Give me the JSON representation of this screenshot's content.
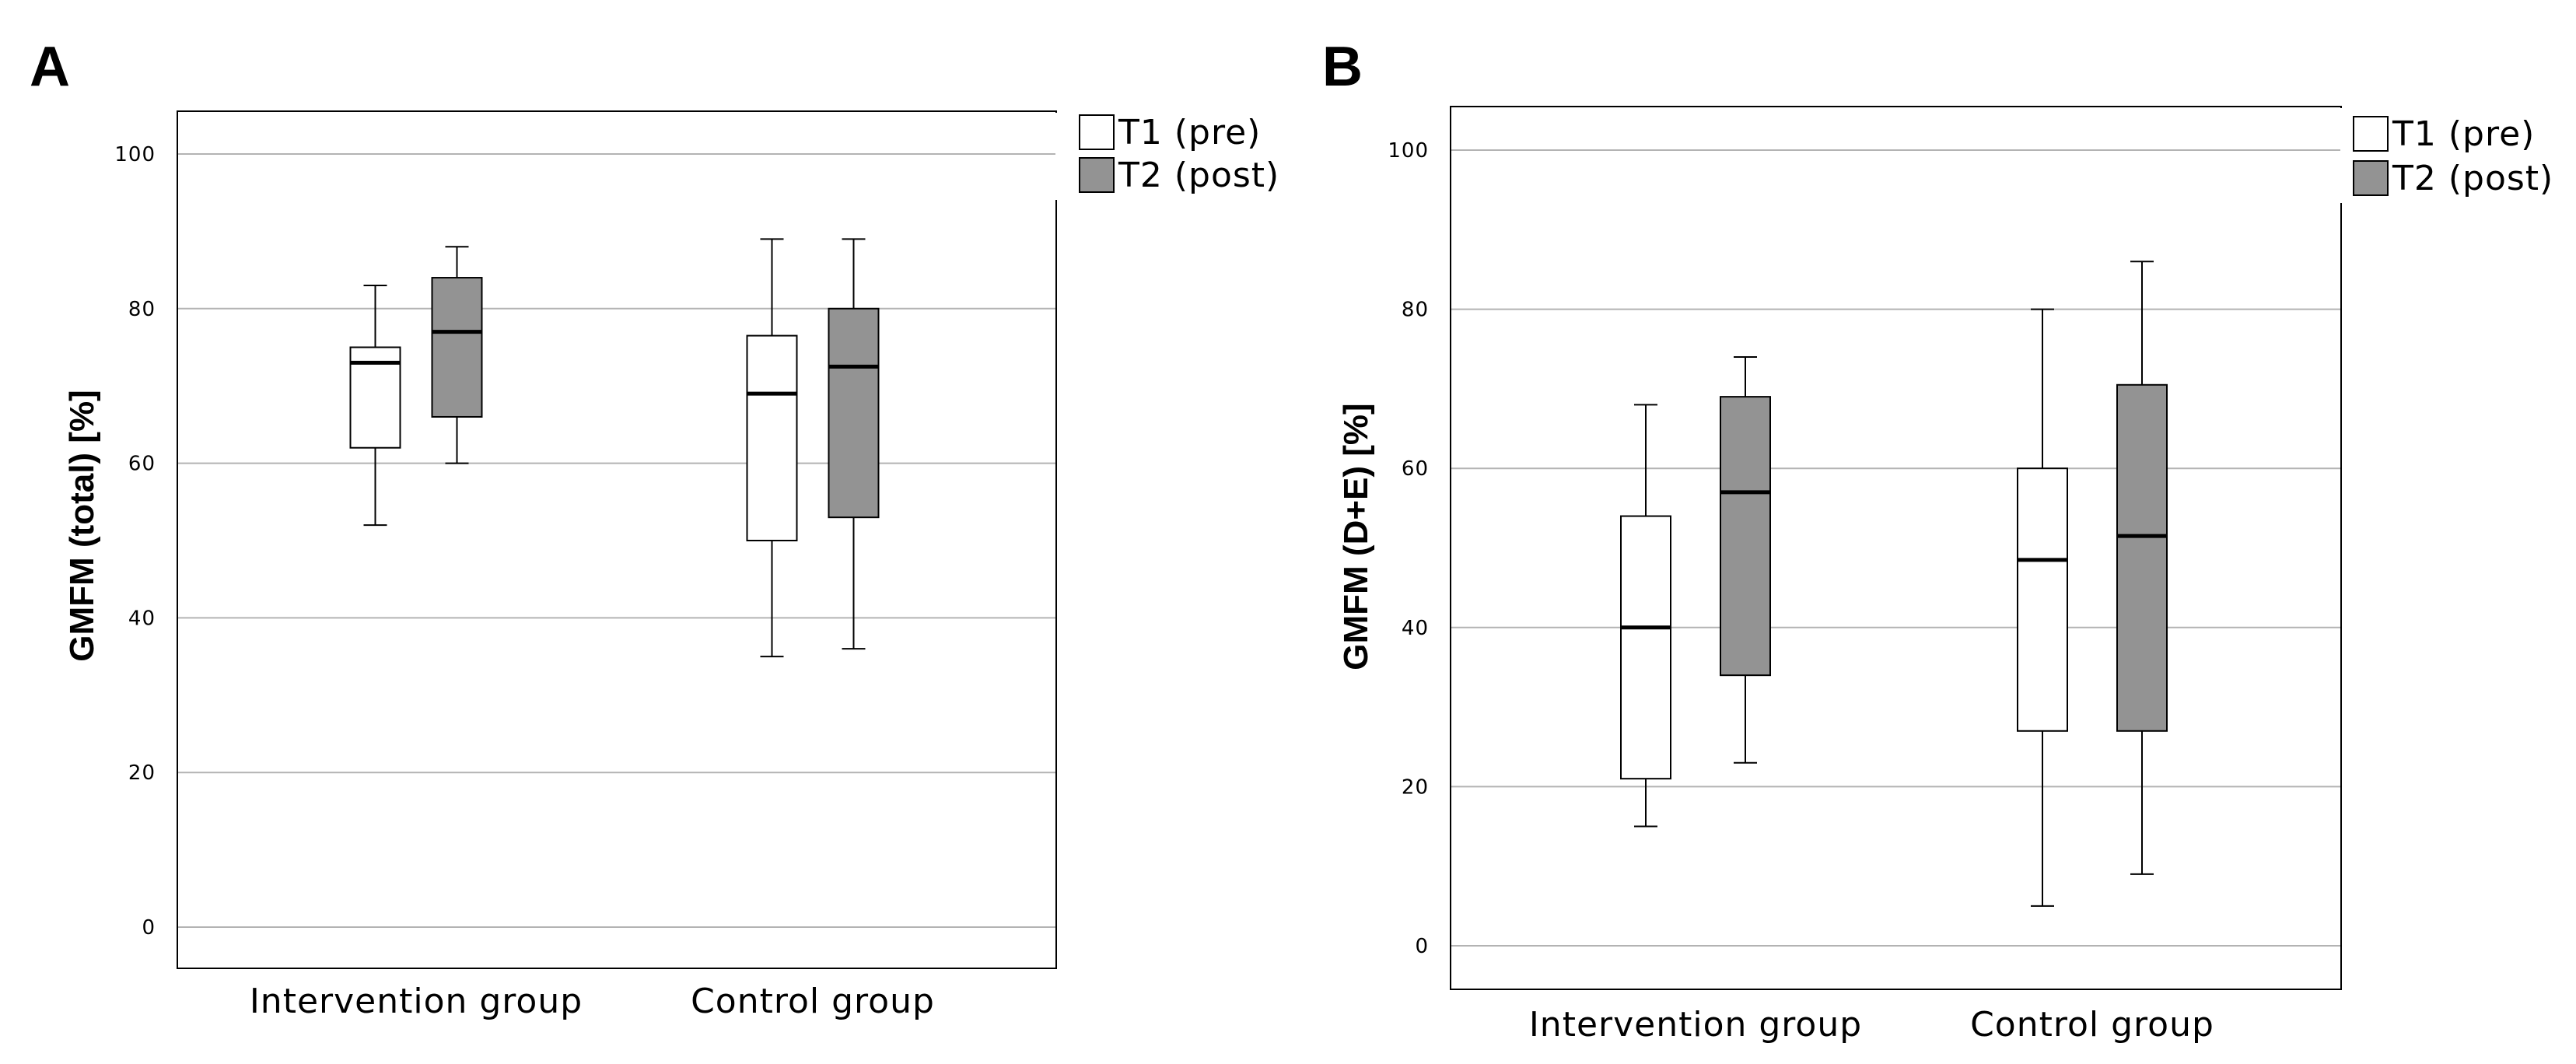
{
  "colors": {
    "t1": "#ffffff",
    "t2": "#939393",
    "grid": "#b3b3b3",
    "axis": "#000000"
  },
  "chart_data": [
    {
      "type": "box",
      "panel": "A",
      "ylabel": "GMFM (total) [%]",
      "xlabel": "",
      "ylim": [
        -5,
        105
      ],
      "yticks": [
        0,
        20,
        40,
        60,
        80,
        100
      ],
      "grid": true,
      "legend_position": "outside-top-right",
      "categories": [
        "Intervention group",
        "Control group"
      ],
      "series": [
        {
          "name": "T1 (pre)",
          "boxes": [
            {
              "whisker_low": 52,
              "q1": 62,
              "median": 73,
              "q3": 75,
              "whisker_high": 83
            },
            {
              "whisker_low": 35,
              "q1": 50,
              "median": 69,
              "q3": 76.5,
              "whisker_high": 89
            }
          ]
        },
        {
          "name": "T2 (post)",
          "boxes": [
            {
              "whisker_low": 60,
              "q1": 66,
              "median": 77,
              "q3": 84,
              "whisker_high": 88
            },
            {
              "whisker_low": 36,
              "q1": 53,
              "median": 72.5,
              "q3": 80,
              "whisker_high": 89
            }
          ]
        }
      ]
    },
    {
      "type": "box",
      "panel": "B",
      "ylabel": "GMFM (D+E) [%]",
      "xlabel": "",
      "ylim": [
        -5,
        106
      ],
      "yticks": [
        0,
        20,
        40,
        60,
        80,
        100
      ],
      "grid": true,
      "legend_position": "outside-top-right",
      "categories": [
        "Intervention group",
        "Control group"
      ],
      "series": [
        {
          "name": "T1 (pre)",
          "boxes": [
            {
              "whisker_low": 15,
              "q1": 21,
              "median": 40,
              "q3": 54,
              "whisker_high": 68
            },
            {
              "whisker_low": 5,
              "q1": 27,
              "median": 48.5,
              "q3": 60,
              "whisker_high": 80
            }
          ]
        },
        {
          "name": "T2 (post)",
          "boxes": [
            {
              "whisker_low": 23,
              "q1": 34,
              "median": 57,
              "q3": 69,
              "whisker_high": 74
            },
            {
              "whisker_low": 9,
              "q1": 27,
              "median": 51.5,
              "q3": 70.5,
              "whisker_high": 86
            }
          ]
        }
      ]
    }
  ]
}
